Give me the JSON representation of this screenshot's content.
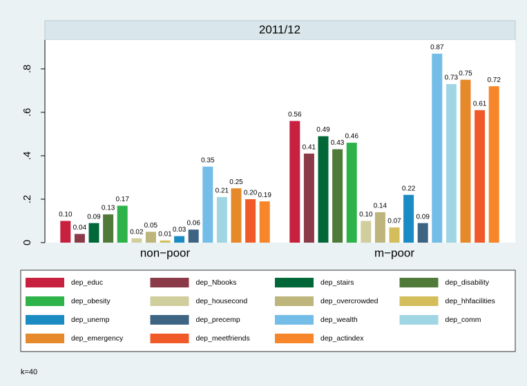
{
  "chart_data": {
    "type": "bar",
    "title": "2011/12",
    "note": "k=40",
    "categories": [
      "non−poor",
      "m−poor"
    ],
    "ylim": [
      0,
      0.933
    ],
    "yticks": [
      0,
      {
        "value": 0.2,
        "label": ".2"
      },
      {
        "value": 0.4,
        "label": ".4"
      },
      {
        "value": 0.6,
        "label": ".6"
      },
      {
        "value": 0.8,
        "label": ".8"
      }
    ],
    "grid": false,
    "legend": "bottom",
    "series": [
      {
        "name": "dep_educ",
        "color": "#c8203f",
        "values": [
          0.1,
          0.56
        ],
        "value_labels": [
          "0.10",
          "0.56"
        ]
      },
      {
        "name": "dep_Nbooks",
        "color": "#8b3a47",
        "values": [
          0.04,
          0.41
        ],
        "value_labels": [
          "0.04",
          "0.41"
        ]
      },
      {
        "name": "dep_stairs",
        "color": "#006838",
        "values": [
          0.09,
          0.49
        ],
        "value_labels": [
          "0.09",
          "0.49"
        ]
      },
      {
        "name": "dep_disability",
        "color": "#4f7a3a",
        "values": [
          0.13,
          0.43
        ],
        "value_labels": [
          "0.13",
          "0.43"
        ]
      },
      {
        "name": "dep_obesity",
        "color": "#2db34a",
        "values": [
          0.17,
          0.46
        ],
        "value_labels": [
          "0.17",
          "0.46"
        ]
      },
      {
        "name": "dep_housecond",
        "color": "#d1ce9e",
        "values": [
          0.02,
          0.1
        ],
        "value_labels": [
          "0.02",
          "0.10"
        ]
      },
      {
        "name": "dep_overcrowded",
        "color": "#bdb57c",
        "values": [
          0.05,
          0.14
        ],
        "value_labels": [
          "0.05",
          "0.14"
        ]
      },
      {
        "name": "dep_hhfacilities",
        "color": "#d4be5c",
        "values": [
          0.01,
          0.07
        ],
        "value_labels": [
          "0.01",
          "0.07"
        ]
      },
      {
        "name": "dep_unemp",
        "color": "#1b8bc3",
        "values": [
          0.03,
          0.22
        ],
        "value_labels": [
          "0.03",
          "0.22"
        ]
      },
      {
        "name": "dep_precemp",
        "color": "#3e6484",
        "values": [
          0.06,
          0.09
        ],
        "value_labels": [
          "0.06",
          "0.09"
        ]
      },
      {
        "name": "dep_wealth",
        "color": "#73bde8",
        "values": [
          0.35,
          0.87
        ],
        "value_labels": [
          "0.35",
          "0.87"
        ]
      },
      {
        "name": "dep_comm",
        "color": "#a0d6e3",
        "values": [
          0.21,
          0.73
        ],
        "value_labels": [
          "0.21",
          "0.73"
        ]
      },
      {
        "name": "dep_emergency",
        "color": "#e6892a",
        "values": [
          0.25,
          0.75
        ],
        "value_labels": [
          "0.25",
          "0.75"
        ]
      },
      {
        "name": "dep_meetfriends",
        "color": "#f05a28",
        "values": [
          0.2,
          0.61
        ],
        "value_labels": [
          "0.20",
          "0.61"
        ]
      },
      {
        "name": "dep_actindex",
        "color": "#f7862b",
        "values": [
          0.19,
          0.72
        ],
        "value_labels": [
          "0.19",
          "0.72"
        ]
      }
    ]
  }
}
